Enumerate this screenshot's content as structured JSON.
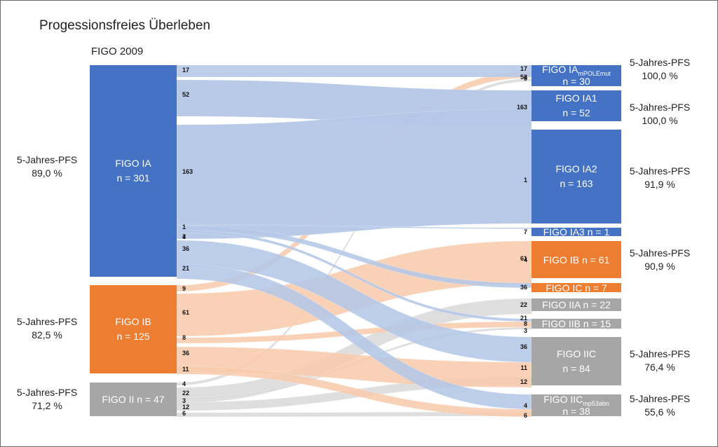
{
  "title": "Progessionsfreies Überleben",
  "left_header": "FIGO 2009",
  "colors": {
    "ia": "#4472c4",
    "ib": "#ed7d31",
    "ii": "#a6a6a6",
    "flow_ia": "#b4c7e7",
    "flow_ib": "#f8cbad",
    "flow_ii": "#d9d9d9"
  },
  "left_nodes": {
    "ia": {
      "name": "FIGO IA",
      "n": "n = 301"
    },
    "ib": {
      "name": "FIGO IB",
      "n": "n = 125"
    },
    "ii": {
      "name": "FIGO II n = 47"
    }
  },
  "left_pfs": [
    {
      "label": "5-Jahres-PFS",
      "value": "89,0 %"
    },
    {
      "label": "5-Jahres-PFS",
      "value": "82,5 %"
    },
    {
      "label": "5-Jahres-PFS",
      "value": "71,2 %"
    }
  ],
  "right_nodes": {
    "iapole": {
      "name": "FIGO IA",
      "sub": "mPOLEmut",
      "n": "n = 30"
    },
    "ia1": {
      "name": "FIGO IA1",
      "n": "n = 52"
    },
    "ia2": {
      "name": "FIGO IA2",
      "n": "n = 163"
    },
    "ia3": {
      "name": "FIGO IA3 n = 1"
    },
    "ib": {
      "name": "FIGO IB n = 61"
    },
    "ic": {
      "name": "FIGO IC n = 7"
    },
    "iia": {
      "name": "FIGO IIA n = 22"
    },
    "iib": {
      "name": "FIGO IIB n = 15"
    },
    "iic": {
      "name": "FIGO IIC",
      "n": "n = 84"
    },
    "iicp53": {
      "name": "FIGO IIC",
      "sub": "mp53abn",
      "n": "n = 38"
    }
  },
  "right_pfs": [
    {
      "label": "5-Jahres-PFS",
      "value": "100,0 %"
    },
    {
      "label": "5-Jahres-PFS",
      "value": "100,0 %"
    },
    {
      "label": "5-Jahres-PFS",
      "value": "91,9 %"
    },
    {
      "label": "5-Jahres-PFS",
      "value": "90,9 %"
    },
    {
      "label": "5-Jahres-PFS",
      "value": "76,4 %"
    },
    {
      "label": "5-Jahres-PFS",
      "value": "55,6 %"
    }
  ],
  "flows": [
    {
      "source": "FIGO IA",
      "target": "FIGO IA mPOLEmut",
      "value": 17
    },
    {
      "source": "FIGO IA",
      "target": "FIGO IA1",
      "value": 52
    },
    {
      "source": "FIGO IA",
      "target": "FIGO IA2",
      "value": 163
    },
    {
      "source": "FIGO IA",
      "target": "FIGO IA3",
      "value": 1
    },
    {
      "source": "FIGO IA",
      "target": "FIGO IC",
      "value": 7
    },
    {
      "source": "FIGO IA",
      "target": "FIGO IIB",
      "value": 4
    },
    {
      "source": "FIGO IA",
      "target": "FIGO IIC",
      "value": 36
    },
    {
      "source": "FIGO IA",
      "target": "FIGO IIC mp53abn",
      "value": 21
    },
    {
      "source": "FIGO IB",
      "target": "FIGO IA mPOLEmut",
      "value": 9
    },
    {
      "source": "FIGO IB",
      "target": "FIGO IB",
      "value": 61
    },
    {
      "source": "FIGO IB",
      "target": "FIGO IIB",
      "value": 8
    },
    {
      "source": "FIGO IB",
      "target": "FIGO IIC",
      "value": 36
    },
    {
      "source": "FIGO IB",
      "target": "FIGO IIC mp53abn",
      "value": 11
    },
    {
      "source": "FIGO II",
      "target": "FIGO IA mPOLEmut",
      "value": 4
    },
    {
      "source": "FIGO II",
      "target": "FIGO IIA",
      "value": 22
    },
    {
      "source": "FIGO II",
      "target": "FIGO IIB",
      "value": 3
    },
    {
      "source": "FIGO II",
      "target": "FIGO IIC",
      "value": 12
    },
    {
      "source": "FIGO II",
      "target": "FIGO IIC mp53abn",
      "value": 6
    }
  ]
}
